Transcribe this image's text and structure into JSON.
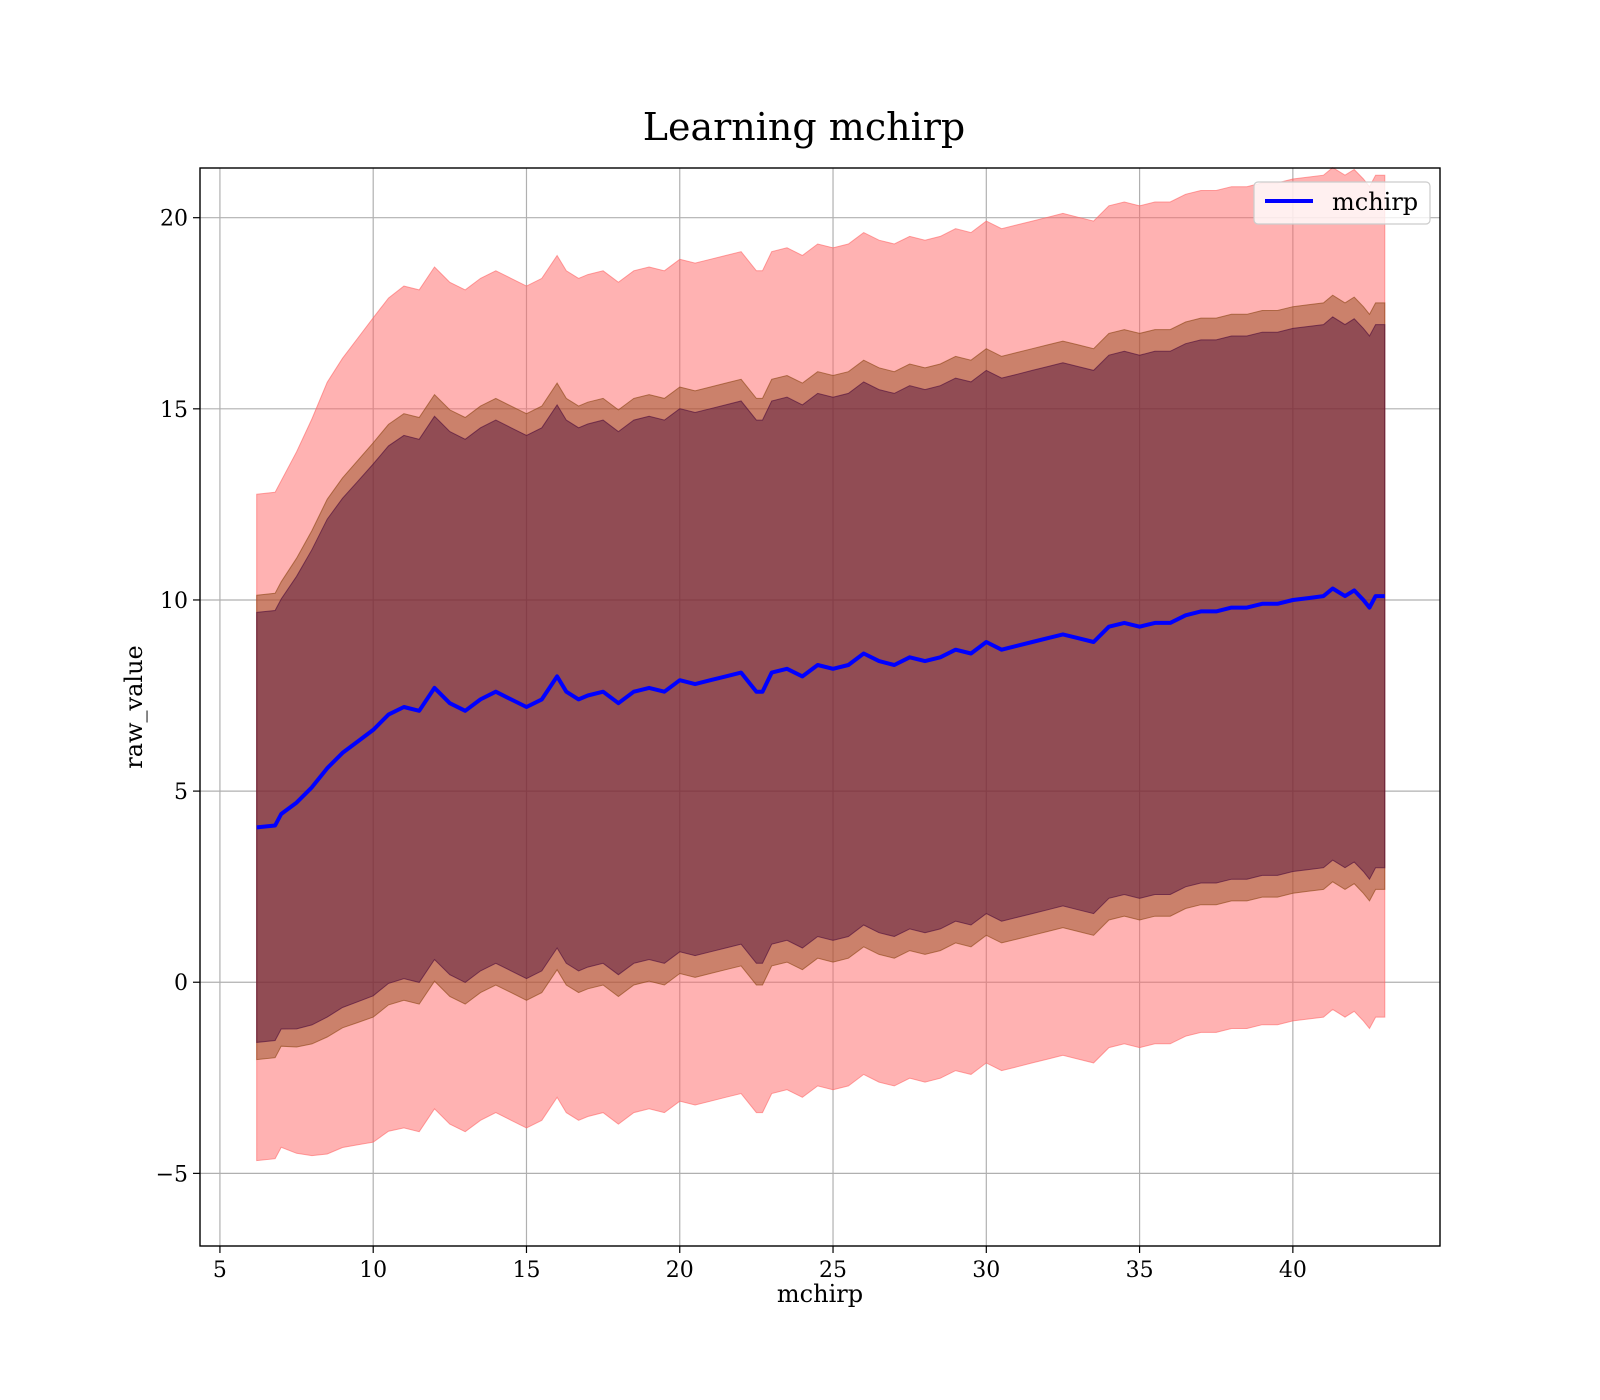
{
  "chart_data": {
    "type": "line",
    "title": "Learning mchirp",
    "xlabel": "mchirp",
    "ylabel": "raw_value",
    "xlim": [
      4.35,
      44.8
    ],
    "ylim": [
      -6.9,
      21.3
    ],
    "xticks": [
      5,
      10,
      15,
      20,
      25,
      30,
      35,
      40
    ],
    "yticks": [
      -5,
      0,
      5,
      10,
      15,
      20
    ],
    "xtick_labels": [
      "5",
      "10",
      "15",
      "20",
      "25",
      "30",
      "35",
      "40"
    ],
    "ytick_labels": [
      "−5",
      "0",
      "5",
      "10",
      "15",
      "20"
    ],
    "grid": true,
    "legend": {
      "position": "top-right",
      "entries": [
        "mchirp"
      ]
    },
    "colors": {
      "line": "#0000ff",
      "band_outer": "#ff6666",
      "band_middle": "#8b4513",
      "band_inner": "#4b0a3a",
      "band_outer_alpha": 0.5,
      "band_middle_alpha": 0.45,
      "band_inner_alpha": 0.45
    },
    "x": [
      6.2,
      6.8,
      7.0,
      7.5,
      8.0,
      8.5,
      9.0,
      9.5,
      10.0,
      10.5,
      11.0,
      11.5,
      12.0,
      12.5,
      13.0,
      13.5,
      14.0,
      14.5,
      15.0,
      15.5,
      16.0,
      16.3,
      16.7,
      17.0,
      17.5,
      18.0,
      18.5,
      19.0,
      19.5,
      20.0,
      20.5,
      21.0,
      21.5,
      22.0,
      22.5,
      22.7,
      23.0,
      23.5,
      24.0,
      24.5,
      25.0,
      25.5,
      26.0,
      26.5,
      27.0,
      27.5,
      28.0,
      28.5,
      29.0,
      29.5,
      30.0,
      30.5,
      31.0,
      31.5,
      32.0,
      32.5,
      33.0,
      33.5,
      34.0,
      34.5,
      35.0,
      35.5,
      36.0,
      36.5,
      37.0,
      37.5,
      38.0,
      38.5,
      39.0,
      39.5,
      40.0,
      40.5,
      41.0,
      41.3,
      41.7,
      42.0,
      42.3,
      42.5,
      42.7,
      43.0
    ],
    "series": [
      {
        "name": "mchirp",
        "values": [
          4.05,
          4.1,
          4.4,
          4.7,
          5.1,
          5.6,
          6.0,
          6.3,
          6.6,
          7.0,
          7.2,
          7.1,
          7.7,
          7.3,
          7.1,
          7.4,
          7.6,
          7.4,
          7.2,
          7.4,
          8.0,
          7.6,
          7.4,
          7.5,
          7.6,
          7.3,
          7.6,
          7.7,
          7.6,
          7.9,
          7.8,
          7.9,
          8.0,
          8.1,
          7.6,
          7.6,
          8.1,
          8.2,
          8.0,
          8.3,
          8.2,
          8.3,
          8.6,
          8.4,
          8.3,
          8.5,
          8.4,
          8.5,
          8.7,
          8.6,
          8.9,
          8.7,
          8.8,
          8.9,
          9.0,
          9.1,
          9.0,
          8.9,
          9.3,
          9.4,
          9.3,
          9.4,
          9.4,
          9.6,
          9.7,
          9.7,
          9.8,
          9.8,
          9.9,
          9.9,
          10.0,
          10.05,
          10.1,
          10.3,
          10.1,
          10.25,
          10.0,
          9.8,
          10.1,
          10.1
        ]
      }
    ],
    "bands": [
      {
        "name": "outer",
        "sigma": 1.55
      },
      {
        "name": "middle",
        "sigma": 1.08
      },
      {
        "name": "inner",
        "sigma": 1.0
      }
    ],
    "band_width": [
      3.8,
      3.8,
      3.8,
      4.0,
      4.2,
      4.4,
      4.5,
      4.6,
      4.7,
      4.75,
      4.8,
      4.8,
      4.8,
      4.8,
      4.8,
      4.8,
      4.8,
      4.8,
      4.8,
      4.8,
      4.8,
      4.8,
      4.8,
      4.8,
      4.8,
      4.8,
      4.8,
      4.8,
      4.8,
      4.8,
      4.8,
      4.8,
      4.8,
      4.8,
      4.8,
      4.8,
      4.8,
      4.8,
      4.8,
      4.8,
      4.8,
      4.8,
      4.8,
      4.8,
      4.8,
      4.8,
      4.8,
      4.8,
      4.8,
      4.8,
      4.8,
      4.8,
      4.8,
      4.8,
      4.8,
      4.8,
      4.8,
      4.8,
      4.8,
      4.8,
      4.8,
      4.8,
      4.8,
      4.8,
      4.8,
      4.8,
      4.8,
      4.8,
      4.8,
      4.8,
      4.8,
      4.8,
      4.8,
      4.8,
      4.8,
      4.8,
      4.8,
      4.8,
      4.8,
      4.8
    ]
  }
}
